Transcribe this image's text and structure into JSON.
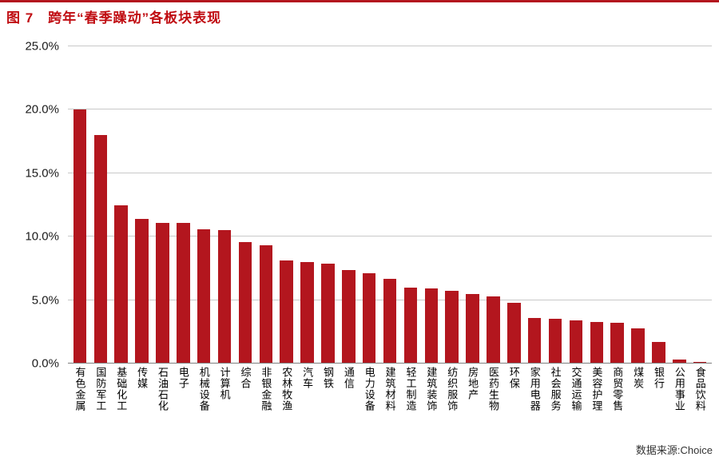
{
  "page": {
    "title": "图 7　跨年“春季躁动”各板块表现",
    "source": "数据来源:Choice",
    "accent_color": "#b3161e"
  },
  "chart_data": {
    "type": "bar",
    "title": "跨年“春季躁动”各板块表现",
    "categories": [
      "有色金属",
      "国防军工",
      "基础化工",
      "传媒",
      "石油石化",
      "电子",
      "机械设备",
      "计算机",
      "综合",
      "非银金融",
      "农林牧渔",
      "汽车",
      "钢铁",
      "通信",
      "电力设备",
      "建筑材料",
      "轻工制造",
      "建筑装饰",
      "纺织服饰",
      "房地产",
      "医药生物",
      "环保",
      "家用电器",
      "社会服务",
      "交通运输",
      "美容护理",
      "商贸零售",
      "煤炭",
      "银行",
      "公用事业",
      "食品饮料"
    ],
    "values": [
      20.0,
      18.0,
      12.5,
      11.4,
      11.1,
      11.1,
      10.6,
      10.5,
      9.6,
      9.3,
      8.1,
      8.0,
      7.9,
      7.4,
      7.1,
      6.7,
      6.0,
      5.9,
      5.7,
      5.5,
      5.3,
      4.8,
      3.6,
      3.5,
      3.4,
      3.3,
      3.2,
      2.8,
      1.7,
      0.3,
      0.1
    ],
    "xlabel": "",
    "ylabel": "",
    "ylim": [
      0,
      25
    ],
    "yticks": [
      0,
      5,
      10,
      15,
      20,
      25
    ],
    "ytick_labels": [
      "0.0%",
      "5.0%",
      "10.0%",
      "15.0%",
      "20.0%",
      "25.0%"
    ],
    "bar_color": "#b3161e",
    "grid": true,
    "legend": "none",
    "source": "数据来源:Choice"
  }
}
